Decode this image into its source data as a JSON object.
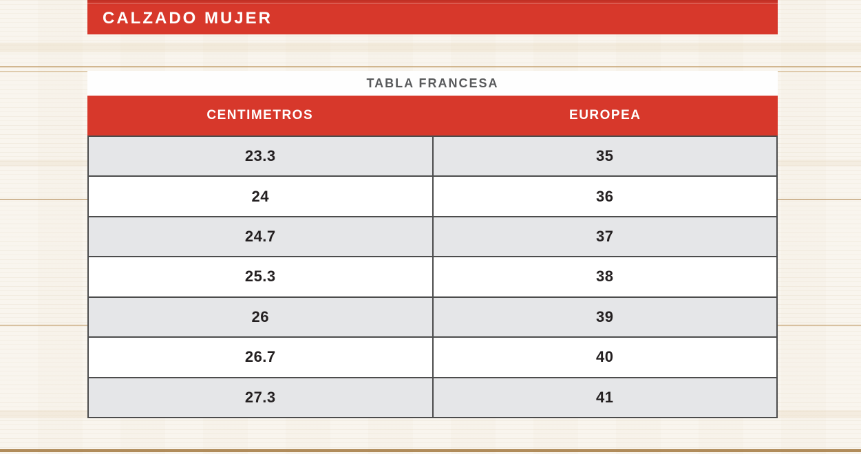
{
  "banner": {
    "title": "CALZADO MUJER"
  },
  "chart_data": {
    "type": "table",
    "title": "TABLA FRANCESA",
    "columns": [
      "CENTIMETROS",
      "EUROPEA"
    ],
    "rows": [
      [
        "23.3",
        "35"
      ],
      [
        "24",
        "36"
      ],
      [
        "24.7",
        "37"
      ],
      [
        "25.3",
        "38"
      ],
      [
        "26",
        "39"
      ],
      [
        "26.7",
        "40"
      ],
      [
        "27.3",
        "41"
      ]
    ],
    "layout": "two-column conversion table, centered values, alternating row shading starting shaded"
  },
  "colors": {
    "accent_red": "#d7382b",
    "row_alt_gray": "#e5e6e8",
    "row_white": "#ffffff",
    "border_dark": "#4c4c4c",
    "title_gray": "#58595b",
    "cell_text": "#231f20",
    "banner_text": "#ffffff",
    "background_wood": "#f8f4ec"
  }
}
